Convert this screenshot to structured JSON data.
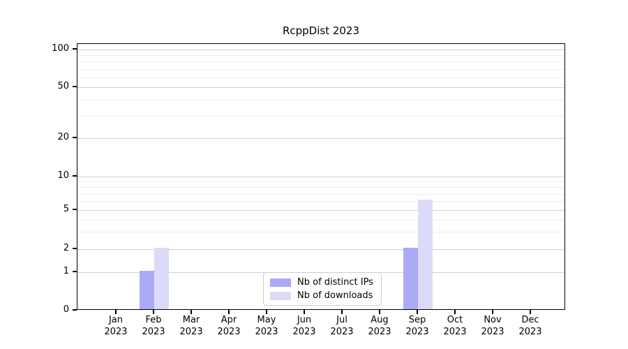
{
  "title": "RcppDist 2023",
  "chart_data": {
    "type": "bar",
    "title": "RcppDist 2023",
    "categories": [
      "Jan",
      "Feb",
      "Mar",
      "Apr",
      "May",
      "Jun",
      "Jul",
      "Aug",
      "Sep",
      "Oct",
      "Nov",
      "Dec"
    ],
    "category_year": "2023",
    "series": [
      {
        "name": "Nb of distinct IPs",
        "color": "#aaaaf6",
        "values": [
          0,
          1,
          0,
          0,
          0,
          0,
          0,
          0,
          2,
          0,
          0,
          0
        ]
      },
      {
        "name": "Nb of downloads",
        "color": "#dbdbf8",
        "values": [
          0,
          2,
          0,
          0,
          0,
          0,
          0,
          0,
          6,
          0,
          0,
          0
        ]
      }
    ],
    "xlabel": "",
    "ylabel": "",
    "yscale": "log (with 0 baseline)",
    "ylim": [
      0,
      110
    ],
    "yticks_major": [
      0,
      1,
      2,
      5,
      10,
      20,
      50,
      100
    ],
    "yticks_minor": [
      3,
      4,
      6,
      7,
      8,
      9,
      30,
      40,
      60,
      70,
      80,
      90
    ],
    "grid": true,
    "legend_position": "lower center"
  },
  "legend": {
    "items": [
      {
        "label": "Nb of distinct IPs",
        "color": "#aaaaf6"
      },
      {
        "label": "Nb of downloads",
        "color": "#dbdbf8"
      }
    ]
  },
  "colors": {
    "axis": "#000000",
    "major_grid": "#d0d0d0",
    "minor_grid": "#ececec",
    "background": "#ffffff"
  }
}
